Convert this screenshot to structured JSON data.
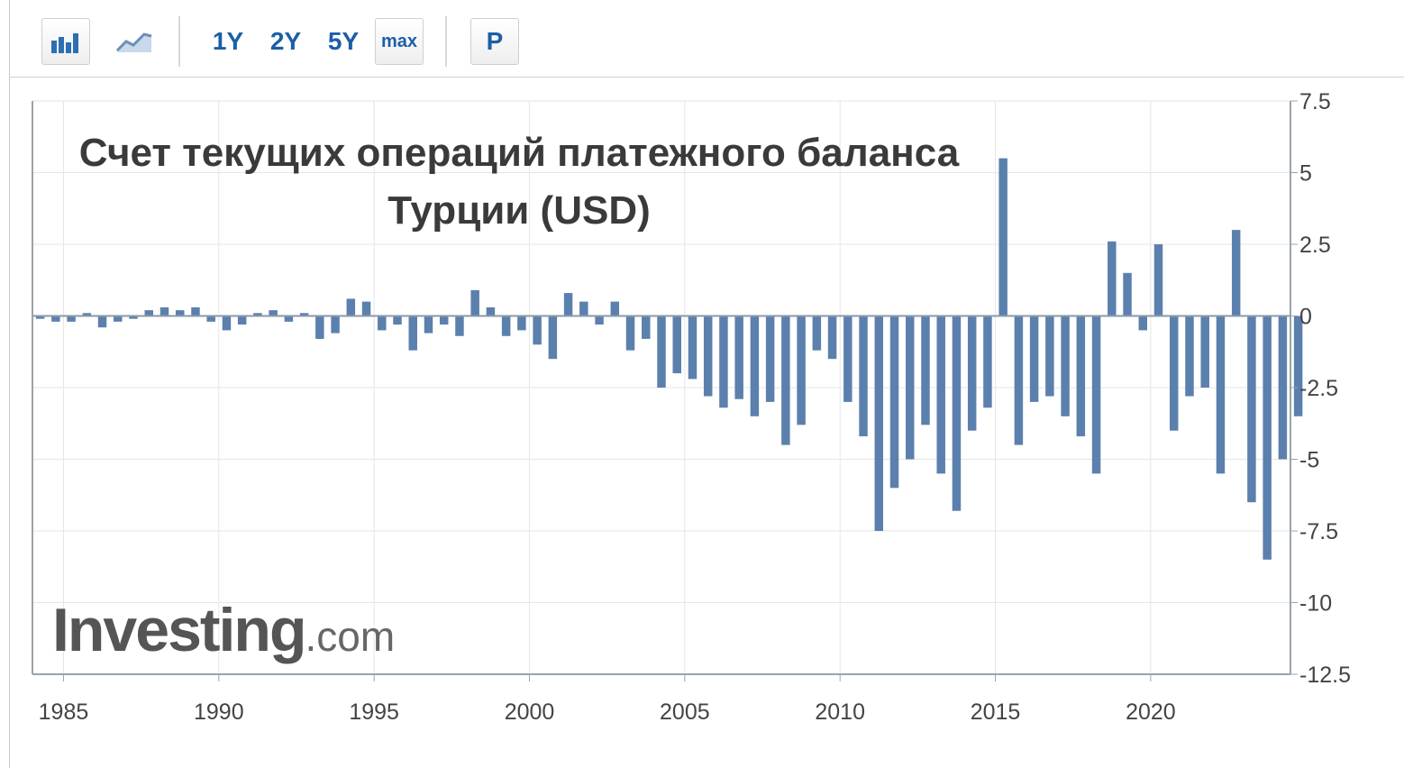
{
  "toolbar": {
    "buttons": [
      {
        "id": "bar-chart",
        "icon": "bar-chart-icon"
      },
      {
        "id": "line-chart",
        "icon": "area-chart-icon"
      },
      {
        "id": "1y",
        "label": "1Y"
      },
      {
        "id": "2y",
        "label": "2Y"
      },
      {
        "id": "5y",
        "label": "5Y"
      },
      {
        "id": "max",
        "label": "max"
      },
      {
        "id": "p",
        "label": "P"
      }
    ]
  },
  "watermark": {
    "brand": "Investing",
    "suffix": ".com"
  },
  "colors": {
    "bar": "#5b80ad",
    "grid": "#e6e6e6",
    "axis": "#9aa3ad",
    "accent": "#1a5fa8"
  },
  "chart_data": {
    "type": "bar",
    "title": "Счет текущих операций платежного баланса Турции (USD)",
    "ylim": [
      -12.5,
      7.5
    ],
    "y_ticks": [
      7.5,
      5,
      2.5,
      0,
      -2.5,
      -5,
      -7.5,
      -10,
      -12.5
    ],
    "y_tick_labels": [
      "7.5",
      "5",
      "2.5",
      "0",
      "-2.5",
      "-5",
      "-7.5",
      "-10",
      "-12.5"
    ],
    "x_range": [
      1984,
      2024.5
    ],
    "x_ticks": [
      1985,
      1990,
      1995,
      2000,
      2005,
      2010,
      2015,
      2020
    ],
    "x_tick_labels": [
      "1985",
      "1990",
      "1995",
      "2000",
      "2005",
      "2010",
      "2015",
      "2020"
    ],
    "grid": true,
    "series": [
      {
        "x": [
          1984,
          1984.5,
          1985,
          1985.5,
          1986,
          1986.5,
          1987,
          1987.5,
          1988,
          1988.5,
          1989,
          1989.5,
          1990,
          1990.5,
          1991,
          1991.5,
          1992,
          1992.5,
          1993,
          1993.5,
          1994,
          1994.5,
          1995,
          1995.5,
          1996,
          1996.5,
          1997,
          1997.5,
          1998,
          1998.5,
          1999,
          1999.5,
          2000,
          2000.5,
          2001,
          2001.5,
          2002,
          2002.5,
          2003,
          2003.5,
          2004,
          2004.5,
          2005,
          2005.5,
          2006,
          2006.5,
          2007,
          2007.5,
          2008,
          2008.5,
          2009,
          2009.5,
          2010,
          2010.5,
          2011,
          2011.5,
          2012,
          2012.5,
          2013,
          2013.5,
          2014,
          2014.5,
          2015,
          2015.5,
          2016,
          2016.5,
          2017,
          2017.5,
          2018,
          2018.5,
          2019,
          2019.5,
          2020,
          2020.5,
          2021,
          2021.5,
          2022,
          2022.5,
          2023,
          2023.5,
          2024,
          2024.5
        ],
        "values": [
          -0.1,
          -0.2,
          -0.2,
          0.1,
          -0.4,
          -0.2,
          -0.1,
          0.2,
          0.3,
          0.2,
          0.3,
          -0.2,
          -0.5,
          -0.3,
          0.1,
          0.2,
          -0.2,
          0.1,
          -0.8,
          -0.6,
          0.6,
          0.5,
          -0.5,
          -0.3,
          -1.2,
          -0.6,
          -0.3,
          -0.7,
          0.9,
          0.3,
          -0.7,
          -0.5,
          -1.0,
          -1.5,
          0.8,
          0.5,
          -0.3,
          0.5,
          -1.2,
          -0.8,
          -2.5,
          -2.0,
          -2.2,
          -2.8,
          -3.2,
          -2.9,
          -3.5,
          -3.0,
          -4.5,
          -3.8,
          -1.2,
          -1.5,
          -3.0,
          -4.2,
          -7.5,
          -6.0,
          -5.0,
          -3.8,
          -5.5,
          -6.8,
          -4.0,
          -3.2,
          5.5,
          -4.5,
          -3.0,
          -2.8,
          -3.5,
          -4.2,
          -5.5,
          2.6,
          1.5,
          -0.5,
          2.5,
          -4.0,
          -2.8,
          -2.5,
          -5.5,
          3.0,
          -6.5,
          -8.5,
          -5.0,
          -3.5
        ]
      }
    ]
  }
}
